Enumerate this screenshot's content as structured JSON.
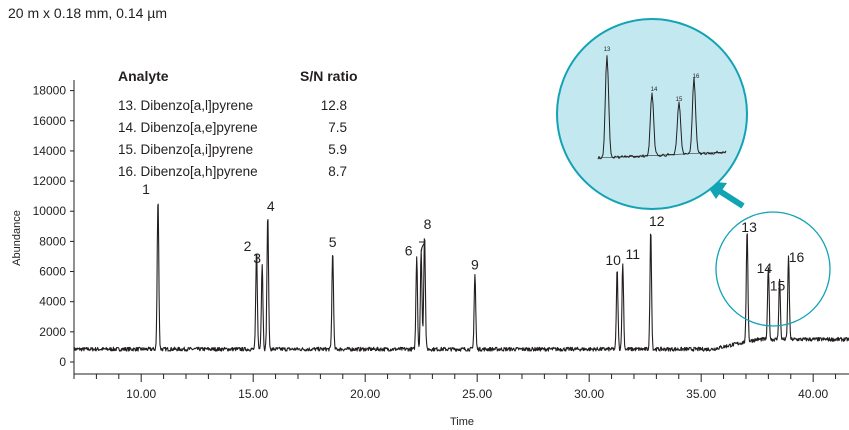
{
  "figure": {
    "subtitle": "20 m x 0.18 mm, 0.14 µm"
  },
  "chart_data": {
    "type": "line",
    "xlabel": "Time",
    "ylabel": "Abundance",
    "xlim": [
      7.0,
      41.6
    ],
    "ylim": [
      0,
      19500
    ],
    "x_ticks": [
      10,
      15,
      20,
      25,
      30,
      35,
      40
    ],
    "x_tick_labels": [
      "10.00",
      "15.00",
      "20.00",
      "25.00",
      "30.00",
      "35.00",
      "40.00"
    ],
    "y_ticks": [
      0,
      2000,
      4000,
      6000,
      8000,
      10000,
      12000,
      14000,
      16000,
      18000
    ],
    "y_tick_labels": [
      "0",
      "2000",
      "4000",
      "6000",
      "8000",
      "10000",
      "12000",
      "14000",
      "16000",
      "18000"
    ],
    "baseline": 850,
    "grid": false,
    "series": [
      {
        "peaks": [
          {
            "label": "1",
            "x": 10.75,
            "y": 10800
          },
          {
            "label": "2",
            "x": 15.15,
            "y": 7300
          },
          {
            "label": "3",
            "x": 15.4,
            "y": 6500
          },
          {
            "label": "4",
            "x": 15.65,
            "y": 9700
          },
          {
            "label": "5",
            "x": 18.55,
            "y": 7300
          },
          {
            "label": "6",
            "x": 22.3,
            "y": 7000
          },
          {
            "label": "7",
            "x": 22.5,
            "y": 7300
          },
          {
            "label": "8",
            "x": 22.65,
            "y": 8500
          },
          {
            "label": "9",
            "x": 24.9,
            "y": 5800
          },
          {
            "label": "10",
            "x": 31.25,
            "y": 6100
          },
          {
            "label": "11",
            "x": 31.5,
            "y": 6500
          },
          {
            "label": "12",
            "x": 32.75,
            "y": 8700
          },
          {
            "label": "13",
            "x": 37.05,
            "y": 8300
          },
          {
            "label": "14",
            "x": 38.0,
            "y": 5700
          },
          {
            "label": "15",
            "x": 38.5,
            "y": 4800
          },
          {
            "label": "16",
            "x": 38.9,
            "y": 6300
          }
        ]
      }
    ],
    "table": {
      "headers": [
        "Analyte",
        "S/N ratio"
      ],
      "rows": [
        [
          "13. Dibenzo[a,l]pyrene",
          "12.8"
        ],
        [
          "14. Dibenzo[a,e]pyrene",
          "7.5"
        ],
        [
          "15. Dibenzo[a,i]pyrene",
          "5.9"
        ],
        [
          "16. Dibenzo[a,h]pyrene",
          "8.7"
        ]
      ]
    },
    "inset": {
      "description_labels": [
        "13",
        "14",
        "15",
        "16"
      ]
    }
  },
  "colors": {
    "trace": "#231f20",
    "inset_fill": "#c3e8ef",
    "inset_stroke": "#12a3b5",
    "arrow": "#12a3b5"
  }
}
